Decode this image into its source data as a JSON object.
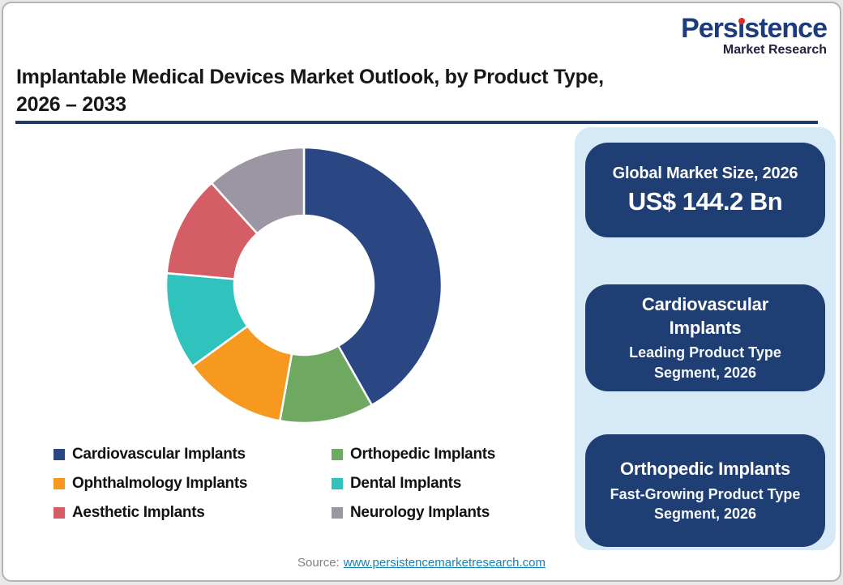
{
  "page": {
    "background": "#FFFFFF",
    "border_color": "#B3B3B3"
  },
  "logo": {
    "wordmark": "Persistence",
    "subtitle": "Market Research",
    "colors": {
      "wordmark": "#1D3C7C",
      "subtitle": "#20223F",
      "i_dot": "#E02B2B"
    }
  },
  "title": {
    "line1": "Implantable Medical Devices Market Outlook, by Product Type,",
    "line2": "2026 – 2033",
    "underline_color": "#1F3864"
  },
  "chart_data": {
    "type": "pie",
    "subtype": "donut",
    "start_angle_deg": 0,
    "direction": "clockwise",
    "inner_radius_ratio": 0.5,
    "units": "percent (estimated from arc angles)",
    "segments": [
      {
        "label": "Cardiovascular Implants",
        "value": 41.8,
        "color": "#2A4783"
      },
      {
        "label": "Orthopedic Implants",
        "value": 11.0,
        "color": "#6FA961"
      },
      {
        "label": "Ophthalmology Implants",
        "value": 12.2,
        "color": "#F6991E"
      },
      {
        "label": "Dental Implants",
        "value": 11.4,
        "color": "#30C3BE"
      },
      {
        "label": "Aesthetic Implants",
        "value": 11.9,
        "color": "#D45D66"
      },
      {
        "label": "Neurology Implants",
        "value": 11.7,
        "color": "#9B95A4"
      }
    ],
    "legend_position": "below-left, 2 columns",
    "gap_color": "#FFFFFF"
  },
  "panel": {
    "background": "#D6E9F7",
    "card_background": "#1F3E73",
    "card_text_color": "#FFFFFF",
    "cards": [
      {
        "title": "Global Market Size, 2026",
        "value": "US$ 144.2 Bn"
      },
      {
        "title": "Cardiovascular Implants",
        "subtitle": "Leading Product Type Segment, 2026"
      },
      {
        "title": "Orthopedic Implants",
        "subtitle": "Fast-Growing Product Type Segment, 2026"
      }
    ]
  },
  "source": {
    "prefix": "Source:",
    "link_text": "www.persistencemarketresearch.com",
    "link_color": "#1583B5"
  }
}
